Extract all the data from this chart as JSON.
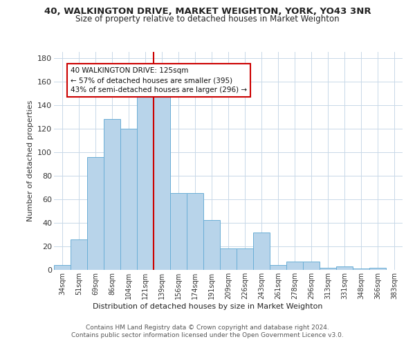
{
  "title_line1": "40, WALKINGTON DRIVE, MARKET WEIGHTON, YORK, YO43 3NR",
  "title_line2": "Size of property relative to detached houses in Market Weighton",
  "xlabel": "Distribution of detached houses by size in Market Weighton",
  "ylabel": "Number of detached properties",
  "categories": [
    "34sqm",
    "51sqm",
    "69sqm",
    "86sqm",
    "104sqm",
    "121sqm",
    "139sqm",
    "156sqm",
    "174sqm",
    "191sqm",
    "209sqm",
    "226sqm",
    "243sqm",
    "261sqm",
    "278sqm",
    "296sqm",
    "313sqm",
    "331sqm",
    "348sqm",
    "366sqm",
    "383sqm"
  ],
  "values": [
    4,
    26,
    96,
    128,
    120,
    152,
    152,
    65,
    65,
    42,
    18,
    18,
    32,
    4,
    7,
    7,
    2,
    3,
    1,
    2,
    0
  ],
  "bar_color": "#b8d4ea",
  "bar_edge_color": "#6aaed6",
  "vline_color": "#cc0000",
  "vline_pos": 5.5,
  "annotation_text": "40 WALKINGTON DRIVE: 125sqm\n← 57% of detached houses are smaller (395)\n43% of semi-detached houses are larger (296) →",
  "annotation_box_color": "#ffffff",
  "annotation_box_edge": "#cc0000",
  "ylim": [
    0,
    185
  ],
  "yticks": [
    0,
    20,
    40,
    60,
    80,
    100,
    120,
    140,
    160,
    180
  ],
  "footer1": "Contains HM Land Registry data © Crown copyright and database right 2024.",
  "footer2": "Contains public sector information licensed under the Open Government Licence v3.0.",
  "bg_color": "#ffffff",
  "grid_color": "#c8d8e8"
}
